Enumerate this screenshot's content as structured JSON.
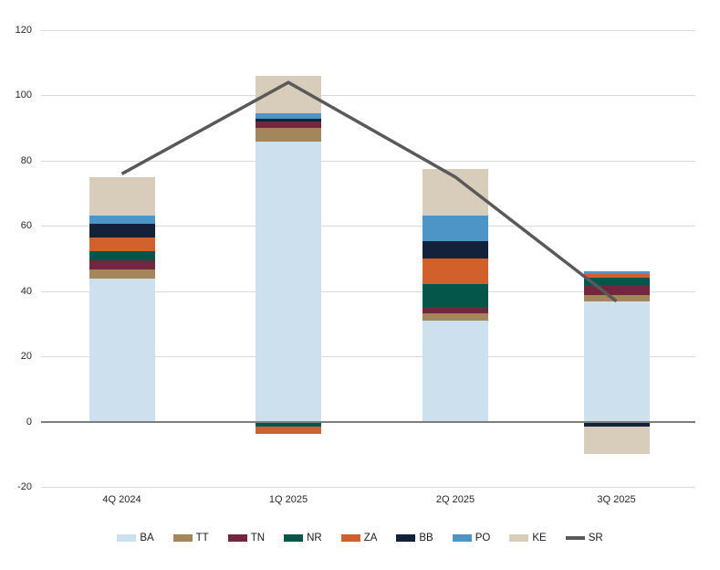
{
  "chart_data": {
    "type": "bar",
    "variant": "stacked-column-with-line-overlay",
    "title": "",
    "xlabel": "",
    "ylabel": "",
    "categories": [
      "4Q 2024",
      "1Q 2025",
      "2Q 2025",
      "3Q 2025"
    ],
    "series": [
      {
        "name": "BA",
        "color": "#cce0ee",
        "values": [
          44,
          86,
          31,
          37
        ]
      },
      {
        "name": "TT",
        "color": "#a5865a",
        "values": [
          2.8,
          4.2,
          2.2,
          1.8
        ]
      },
      {
        "name": "TN",
        "color": "#74263e",
        "values": [
          2.6,
          1.9,
          2.0,
          3.2
        ]
      },
      {
        "name": "NR",
        "color": "#03564a",
        "values": [
          3.0,
          -1.3,
          7.0,
          2.2
        ]
      },
      {
        "name": "ZA",
        "color": "#d2602a",
        "values": [
          4.0,
          -2.3,
          7.8,
          1.0
        ]
      },
      {
        "name": "BB",
        "color": "#14213a",
        "values": [
          4.2,
          0.8,
          5.5,
          -1.3
        ]
      },
      {
        "name": "PO",
        "color": "#4c95c7",
        "values": [
          2.5,
          1.6,
          7.6,
          0.9
        ]
      },
      {
        "name": "KE",
        "color": "#d8ccba",
        "values": [
          12.0,
          11.5,
          14.3,
          -8.4
        ]
      }
    ],
    "line_series": [
      {
        "name": "SR",
        "color": "#595959",
        "values": [
          76,
          104,
          75,
          37
        ]
      }
    ],
    "stacked": true,
    "ylim": [
      -20,
      120
    ],
    "yticks": [
      -20,
      0,
      20,
      40,
      60,
      80,
      100,
      120
    ],
    "grid": "horizontal-only",
    "legend_position": "bottom",
    "axis_colors": {
      "gridline": "#d9d9d9",
      "zero_line": "#7b7d7f",
      "tick_text": "#262626"
    }
  }
}
